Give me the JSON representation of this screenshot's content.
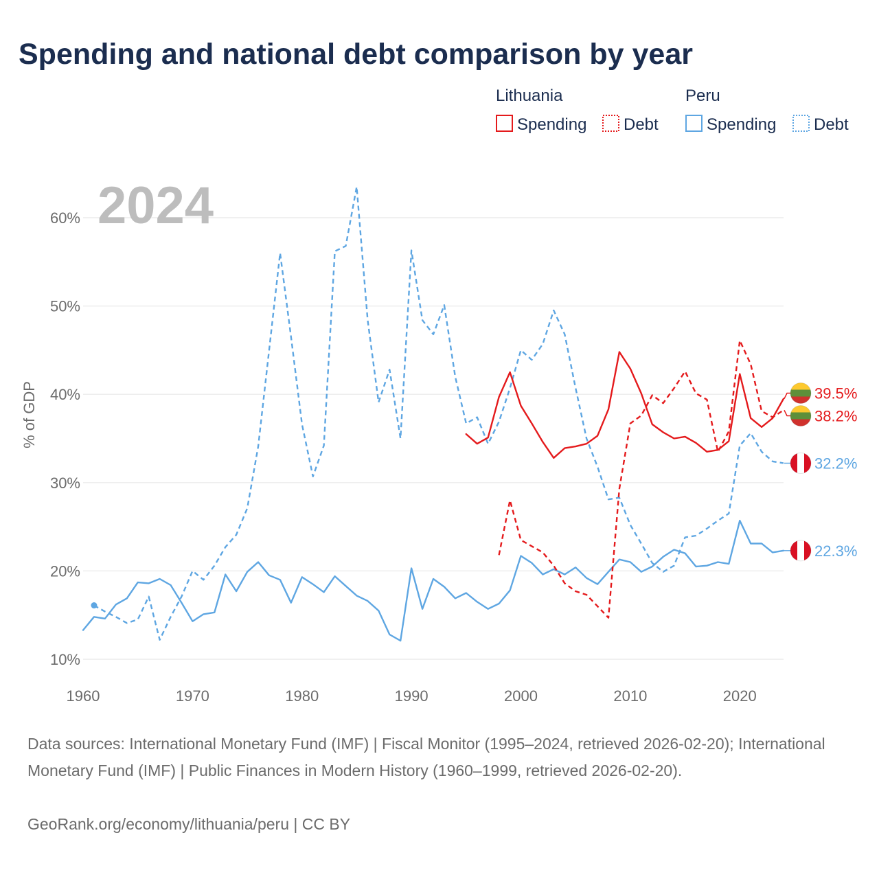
{
  "chart_data": {
    "type": "line",
    "title": "Spending and national debt comparison by year",
    "year_label": "2024",
    "ylabel": "% of GDP",
    "x_axis": {
      "min": 1960,
      "max": 2024,
      "ticks": [
        1960,
        1970,
        1980,
        1990,
        2000,
        2010,
        2020
      ]
    },
    "y_axis": {
      "min": 10,
      "max": 60,
      "ticks": [
        {
          "value": 10,
          "label": "10%"
        },
        {
          "value": 20,
          "label": "20%"
        },
        {
          "value": 30,
          "label": "30%"
        },
        {
          "value": 40,
          "label": "40%"
        },
        {
          "value": 50,
          "label": "50%"
        },
        {
          "value": 60,
          "label": "60%"
        }
      ]
    },
    "legend": [
      {
        "group": "Lithuania",
        "items": [
          {
            "label": "Spending",
            "color": "#e41a1c",
            "dashed": false
          },
          {
            "label": "Debt",
            "color": "#e41a1c",
            "dashed": true
          }
        ]
      },
      {
        "group": "Peru",
        "items": [
          {
            "label": "Spending",
            "color": "#5ea6e2",
            "dashed": false
          },
          {
            "label": "Debt",
            "color": "#5ea6e2",
            "dashed": true
          }
        ]
      }
    ],
    "series": [
      {
        "legend_group": 1,
        "legend_item": 0,
        "start_year": 1960,
        "values": [
          13.3,
          14.8,
          14.6,
          16.2,
          16.9,
          18.7,
          18.6,
          19.1,
          18.4,
          16.4,
          14.3,
          15.1,
          15.3,
          19.6,
          17.7,
          19.9,
          21.0,
          19.5,
          19.0,
          16.4,
          19.3,
          18.5,
          17.6,
          19.4,
          18.3,
          17.2,
          16.6,
          15.5,
          12.8,
          12.1,
          20.3,
          15.7,
          19.1,
          18.2,
          16.9,
          17.5,
          16.5,
          15.7,
          16.3,
          17.8,
          21.7,
          20.9,
          19.6,
          20.2,
          19.6,
          20.4,
          19.2,
          18.5,
          19.9,
          21.3,
          21.0,
          19.9,
          20.5,
          21.6,
          22.4,
          22.0,
          20.5,
          20.6,
          21.0,
          20.8,
          25.7,
          23.1,
          23.1,
          22.1,
          22.3
        ],
        "end_label": "22.3%",
        "start_dot": false,
        "flag_icon": "peru-flag-icon",
        "flag_colors": [
          "#d91023",
          "#ffffff",
          "#d91023"
        ],
        "flag_vertical_stripes": true
      },
      {
        "legend_group": 1,
        "legend_item": 1,
        "start_year": 1961,
        "values": [
          16.1,
          15.4,
          14.8,
          14.1,
          14.5,
          17.1,
          12.2,
          14.8,
          17.1,
          20.0,
          19.0,
          20.6,
          22.7,
          24.1,
          27.1,
          34.1,
          45.0,
          56.0,
          46.5,
          36.6,
          30.7,
          34.2,
          56.2,
          56.8,
          63.5,
          48.4,
          39.1,
          42.8,
          35.0,
          56.3,
          48.4,
          46.8,
          50.1,
          42.0,
          36.7,
          37.4,
          34.4,
          36.9,
          40.7,
          45.0,
          43.9,
          45.7,
          49.5,
          46.8,
          40.7,
          35.0,
          31.8,
          28.1,
          28.3,
          25.2,
          23.1,
          20.9,
          19.9,
          20.6,
          23.8,
          24.0,
          24.8,
          25.7,
          26.5,
          34.2,
          35.6,
          33.5,
          32.4,
          32.2
        ],
        "end_label": "32.2%",
        "start_dot": true,
        "flag_icon": "peru-flag-icon",
        "flag_colors": [
          "#d91023",
          "#ffffff",
          "#d91023"
        ],
        "flag_vertical_stripes": true
      },
      {
        "legend_group": 0,
        "legend_item": 0,
        "start_year": 1995,
        "values": [
          35.5,
          34.4,
          35.1,
          39.7,
          42.5,
          38.7,
          36.7,
          34.6,
          32.8,
          33.9,
          34.1,
          34.4,
          35.3,
          38.3,
          44.8,
          42.9,
          40.1,
          36.6,
          35.7,
          35.0,
          35.2,
          34.5,
          33.5,
          33.7,
          34.7,
          42.3,
          37.3,
          36.3,
          37.3,
          39.5
        ],
        "end_label": "39.5%",
        "start_dot": false,
        "flag_icon": "lithuania-flag-icon",
        "flag_colors": [
          "#fdc92f",
          "#5e8f3a",
          "#d0312d"
        ],
        "flag_vertical_stripes": false
      },
      {
        "legend_group": 0,
        "legend_item": 1,
        "start_year": 1998,
        "values": [
          21.8,
          28.0,
          23.5,
          22.8,
          22.1,
          20.6,
          18.6,
          17.7,
          17.3,
          16.0,
          14.7,
          29.3,
          36.7,
          37.6,
          39.9,
          39.0,
          40.7,
          42.6,
          40.1,
          39.4,
          33.5,
          35.8,
          46.1,
          43.4,
          38.1,
          37.4,
          38.2
        ],
        "end_label": "38.2%",
        "start_dot": false,
        "flag_icon": "lithuania-flag-icon",
        "flag_colors": [
          "#fdc92f",
          "#5e8f3a",
          "#d0312d"
        ],
        "flag_vertical_stripes": false
      }
    ]
  },
  "footer": {
    "sources": "Data sources: International Monetary Fund (IMF) | Fiscal Monitor (1995–2024, retrieved 2026-02-20); International Monetary Fund (IMF) | Public Finances in Modern History (1960–1999, retrieved 2026-02-20).",
    "credit": "GeoRank.org/economy/lithuania/peru | CC BY"
  }
}
